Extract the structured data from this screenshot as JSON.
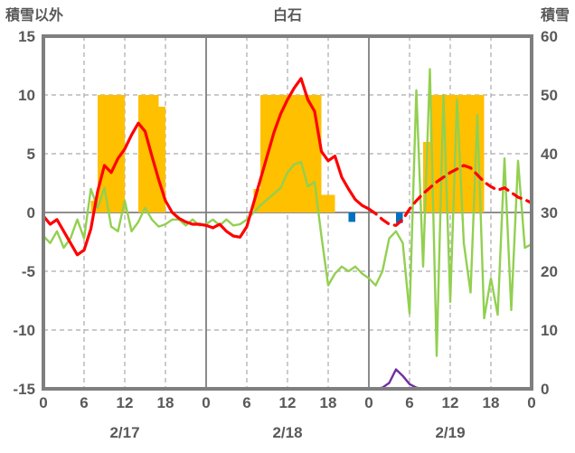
{
  "chart_data": {
    "type": "line",
    "title": "白石",
    "left_axis": {
      "label": "積雪以外",
      "min": -15,
      "max": 15,
      "ticks": [
        15,
        10,
        5,
        0,
        -5,
        -10,
        -15
      ]
    },
    "right_axis": {
      "label": "積雪",
      "min": 0,
      "max": 60,
      "ticks": [
        60,
        50,
        40,
        30,
        20,
        10,
        0
      ]
    },
    "x_axis": {
      "total_hours": 72,
      "tick_hours": [
        0,
        6,
        12,
        18,
        24,
        30,
        36,
        42,
        48,
        54,
        60,
        66,
        72
      ],
      "tick_labels": [
        "0",
        "6",
        "12",
        "18",
        "0",
        "6",
        "12",
        "18",
        "0",
        "6",
        "12",
        "18",
        "0"
      ],
      "day_boundary_hours": [
        24,
        48
      ],
      "date_labels": [
        {
          "label": "2/17",
          "center_hour": 12
        },
        {
          "label": "2/18",
          "center_hour": 36
        },
        {
          "label": "2/19",
          "center_hour": 60
        }
      ]
    },
    "grid": {
      "h_dashed_values": [
        10,
        5,
        -5,
        -10
      ]
    },
    "colors": {
      "sunshine_bar": "#FFC000",
      "precipitation_bar": "#0070C0",
      "green_line": "#92D050",
      "temperature_line": "#FF0000",
      "snow_depth_line": "#7030A0",
      "frame": "#7F7F7F",
      "grid_dashed": "#ABABAB",
      "text": "#595959"
    },
    "series": [
      {
        "name": "sunshine-bars",
        "type": "bar",
        "axis": "left",
        "color": "#FFC000",
        "values": [
          0,
          0,
          0,
          0,
          0,
          0,
          0,
          1,
          10,
          10,
          10,
          10,
          0,
          0,
          10,
          10,
          10,
          9,
          0,
          0,
          0,
          0,
          0,
          0,
          0,
          0,
          0,
          0,
          0,
          0,
          0,
          2,
          10,
          10,
          10,
          10,
          10,
          10,
          10,
          10,
          10,
          1.5,
          1.5,
          0,
          0,
          0,
          0,
          0,
          0,
          0,
          0,
          0,
          0,
          0,
          0,
          0,
          6,
          10,
          10,
          10,
          10,
          10,
          10,
          10,
          10,
          0,
          0,
          0,
          0,
          0,
          0,
          0
        ]
      },
      {
        "name": "precipitation-bars",
        "type": "bar",
        "axis": "left",
        "color": "#0070C0",
        "values": [
          0,
          0,
          0,
          0,
          0,
          0,
          0,
          0,
          0,
          0,
          0,
          0,
          0,
          0,
          0,
          0,
          0,
          0,
          0,
          0,
          0,
          0,
          0,
          0,
          0,
          0,
          0,
          0,
          0,
          0,
          0,
          0,
          0,
          0,
          0,
          0,
          0,
          0,
          0,
          0,
          0,
          0,
          0,
          0,
          0,
          -0.8,
          0,
          0,
          0,
          0,
          0,
          0,
          -0.9,
          0,
          0,
          0,
          0,
          0,
          0,
          0,
          0,
          0,
          0,
          0,
          0,
          0,
          0,
          0,
          0,
          0,
          0,
          0
        ]
      },
      {
        "name": "green-line",
        "type": "line",
        "axis": "left",
        "color": "#92D050",
        "values": [
          -2.0,
          -2.6,
          -1.6,
          -3.0,
          -2.2,
          -0.6,
          -2.2,
          2.0,
          0.4,
          2.1,
          -1.2,
          -1.6,
          1.0,
          -1.6,
          -0.8,
          0.4,
          -0.6,
          -1.2,
          -1.0,
          -0.6,
          -0.6,
          -1.1,
          -0.6,
          -1.1,
          -1.0,
          -0.6,
          -1.1,
          -0.6,
          -1.1,
          -1.0,
          -0.6,
          0.0,
          0.6,
          1.1,
          1.6,
          2.1,
          3.4,
          4.1,
          4.3,
          2.2,
          2.6,
          -2.0,
          -6.2,
          -5.2,
          -4.6,
          -5.0,
          -4.6,
          -5.2,
          -5.6,
          -6.2,
          -5.0,
          -2.2,
          -1.6,
          -2.6,
          -8.6,
          10.4,
          -4.6,
          12.2,
          -12.2,
          10.0,
          -7.6,
          9.6,
          -2.6,
          -6.8,
          8.3,
          -9.0,
          -5.6,
          -8.7,
          4.6,
          -8.3,
          4.4,
          -3.0,
          -2.7
        ]
      },
      {
        "name": "temperature-line",
        "type": "line",
        "axis": "left",
        "color": "#FF0000",
        "solid_until_hour": 48,
        "values": [
          -0.3,
          -1.0,
          -0.6,
          -1.6,
          -2.6,
          -3.6,
          -3.2,
          -1.4,
          1.8,
          4.0,
          3.4,
          4.6,
          5.4,
          6.6,
          7.6,
          6.9,
          4.8,
          2.8,
          1.0,
          0.0,
          -0.5,
          -0.8,
          -1.0,
          -1.0,
          -1.1,
          -1.3,
          -1.0,
          -1.6,
          -2.0,
          -2.1,
          -1.2,
          0.8,
          2.8,
          4.8,
          6.8,
          8.4,
          9.6,
          10.6,
          11.4,
          9.6,
          8.6,
          5.2,
          4.4,
          4.8,
          3.0,
          2.0,
          1.1,
          0.6,
          0.3,
          -0.1,
          -0.6,
          -1.0,
          -1.1,
          -0.6,
          0.3,
          1.0,
          1.6,
          2.1,
          2.6,
          3.0,
          3.4,
          3.7,
          4.0,
          3.8,
          3.2,
          2.6,
          2.2,
          1.9,
          2.1,
          1.7,
          1.3,
          1.1,
          0.8
        ]
      },
      {
        "name": "snow-depth-line",
        "type": "line",
        "axis": "right",
        "color": "#7030A0",
        "values": [
          0,
          0,
          0,
          0,
          0,
          0,
          0,
          0,
          0,
          0,
          0,
          0,
          0,
          0,
          0,
          0,
          0,
          0,
          0,
          0,
          0,
          0,
          0,
          0,
          0,
          0,
          0,
          0,
          0,
          0,
          0,
          0,
          0,
          0,
          0,
          0,
          0,
          0,
          0,
          0,
          0,
          0,
          0,
          0,
          0,
          0,
          0,
          0,
          0,
          0,
          0.2,
          1.0,
          3.3,
          2.2,
          0.8,
          0.2,
          0,
          0,
          0,
          0,
          0,
          0,
          0,
          0,
          0,
          0,
          0,
          0,
          0,
          0,
          0,
          0,
          0
        ]
      }
    ]
  }
}
